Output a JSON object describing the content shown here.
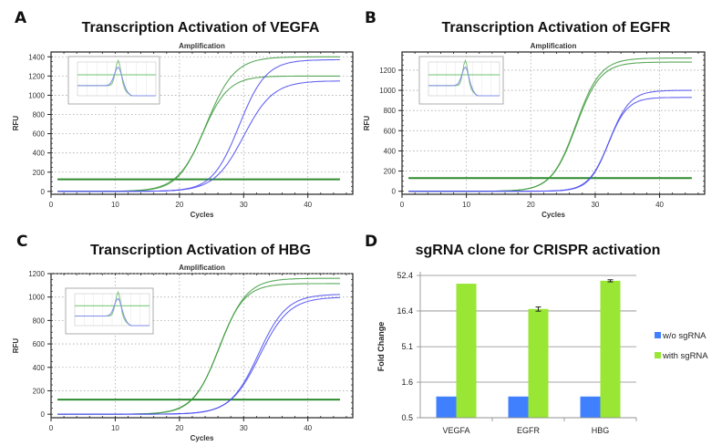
{
  "panels": {
    "A": {
      "letter": "A",
      "title": "Transcription Activation of VEGFA"
    },
    "B": {
      "letter": "B",
      "title": "Transcription Activation of EGFR"
    },
    "C": {
      "letter": "C",
      "title": "Transcription Activation of HBG"
    },
    "D": {
      "letter": "D",
      "title": "sgRNA clone for CRISPR activation"
    }
  },
  "colors": {
    "with_sgrna_curve": "#3c9a3c",
    "without_sgrna_curve": "#4a4af0",
    "threshold": "#2e8b2e",
    "bar_without": "#4080ff",
    "bar_with": "#99e635"
  },
  "chart_data": [
    {
      "id": "A",
      "type": "line",
      "title": "Transcription Activation of VEGFA",
      "subtitle": "Amplification",
      "xlabel": "Cycles",
      "ylabel": "RFU",
      "xlim": [
        0,
        47
      ],
      "ylim": [
        -30,
        1450
      ],
      "xticks": [
        0,
        10,
        20,
        30,
        40
      ],
      "yticks": [
        0,
        200,
        400,
        600,
        800,
        1000,
        1200,
        1400
      ],
      "grid": true,
      "threshold": 125,
      "x_range": [
        1,
        45
      ],
      "series": [
        {
          "name": "with sgRNA rep1",
          "group": "with",
          "plateau": 1400,
          "midpoint": 24.2,
          "slope": 2.2
        },
        {
          "name": "with sgRNA rep2",
          "group": "with",
          "plateau": 1200,
          "midpoint": 23.6,
          "slope": 2.0
        },
        {
          "name": "w/o sgRNA rep1",
          "group": "without",
          "plateau": 1370,
          "midpoint": 29.3,
          "slope": 2.1
        },
        {
          "name": "w/o sgRNA rep2",
          "group": "without",
          "plateau": 1150,
          "midpoint": 30.0,
          "slope": 2.3
        }
      ],
      "inset": "melt-peak"
    },
    {
      "id": "B",
      "type": "line",
      "title": "Transcription Activation of EGFR",
      "subtitle": "Amplification",
      "xlabel": "Cycles",
      "ylabel": "RFU",
      "xlim": [
        0,
        47
      ],
      "ylim": [
        -30,
        1380
      ],
      "xticks": [
        0,
        10,
        20,
        30,
        40
      ],
      "yticks": [
        0,
        200,
        400,
        600,
        800,
        1000,
        1200
      ],
      "grid": true,
      "threshold": 130,
      "x_range": [
        1,
        45
      ],
      "series": [
        {
          "name": "with sgRNA rep1",
          "group": "with",
          "plateau": 1320,
          "midpoint": 27.0,
          "slope": 1.9
        },
        {
          "name": "with sgRNA rep2",
          "group": "with",
          "plateau": 1280,
          "midpoint": 27.0,
          "slope": 1.9
        },
        {
          "name": "w/o sgRNA rep1",
          "group": "without",
          "plateau": 1000,
          "midpoint": 32.2,
          "slope": 1.6
        },
        {
          "name": "w/o sgRNA rep2",
          "group": "without",
          "plateau": 930,
          "midpoint": 32.0,
          "slope": 1.5
        }
      ],
      "inset": "melt-peak"
    },
    {
      "id": "C",
      "type": "line",
      "title": "Transcription Activation of HBG",
      "subtitle": "Amplification",
      "xlabel": "Cycles",
      "ylabel": "RFU",
      "xlim": [
        0,
        47
      ],
      "ylim": [
        -30,
        1200
      ],
      "xticks": [
        0,
        10,
        20,
        30,
        40
      ],
      "yticks": [
        0,
        200,
        400,
        600,
        800,
        1000,
        1200
      ],
      "grid": true,
      "threshold": 125,
      "x_range": [
        1,
        45
      ],
      "series": [
        {
          "name": "with sgRNA rep1",
          "group": "with",
          "plateau": 1160,
          "midpoint": 26.3,
          "slope": 2.1
        },
        {
          "name": "with sgRNA rep2",
          "group": "with",
          "plateau": 1115,
          "midpoint": 26.1,
          "slope": 2.0
        },
        {
          "name": "w/o sgRNA rep1",
          "group": "without",
          "plateau": 1025,
          "midpoint": 32.3,
          "slope": 2.2
        },
        {
          "name": "w/o sgRNA rep2",
          "group": "without",
          "plateau": 1000,
          "midpoint": 32.5,
          "slope": 2.3
        }
      ],
      "inset": "melt-peak"
    },
    {
      "id": "D",
      "type": "bar",
      "title": "sgRNA clone for CRISPR activation",
      "xlabel": "",
      "ylabel": "Fold Change",
      "yscale": "log",
      "ylim": [
        0.5,
        52.4
      ],
      "yticks": [
        0.5,
        1.6,
        5.1,
        16.4,
        52.4
      ],
      "categories": [
        "VEGFA",
        "EGFR",
        "HBG"
      ],
      "legend_position": "right",
      "series": [
        {
          "name": "w/o sgRNA",
          "values": [
            1,
            1,
            1
          ],
          "errors": [
            0,
            0,
            0
          ]
        },
        {
          "name": "with sgRNA",
          "values": [
            40,
            17.5,
            44
          ],
          "errors": [
            0,
            1.2,
            1.5
          ]
        }
      ]
    }
  ]
}
